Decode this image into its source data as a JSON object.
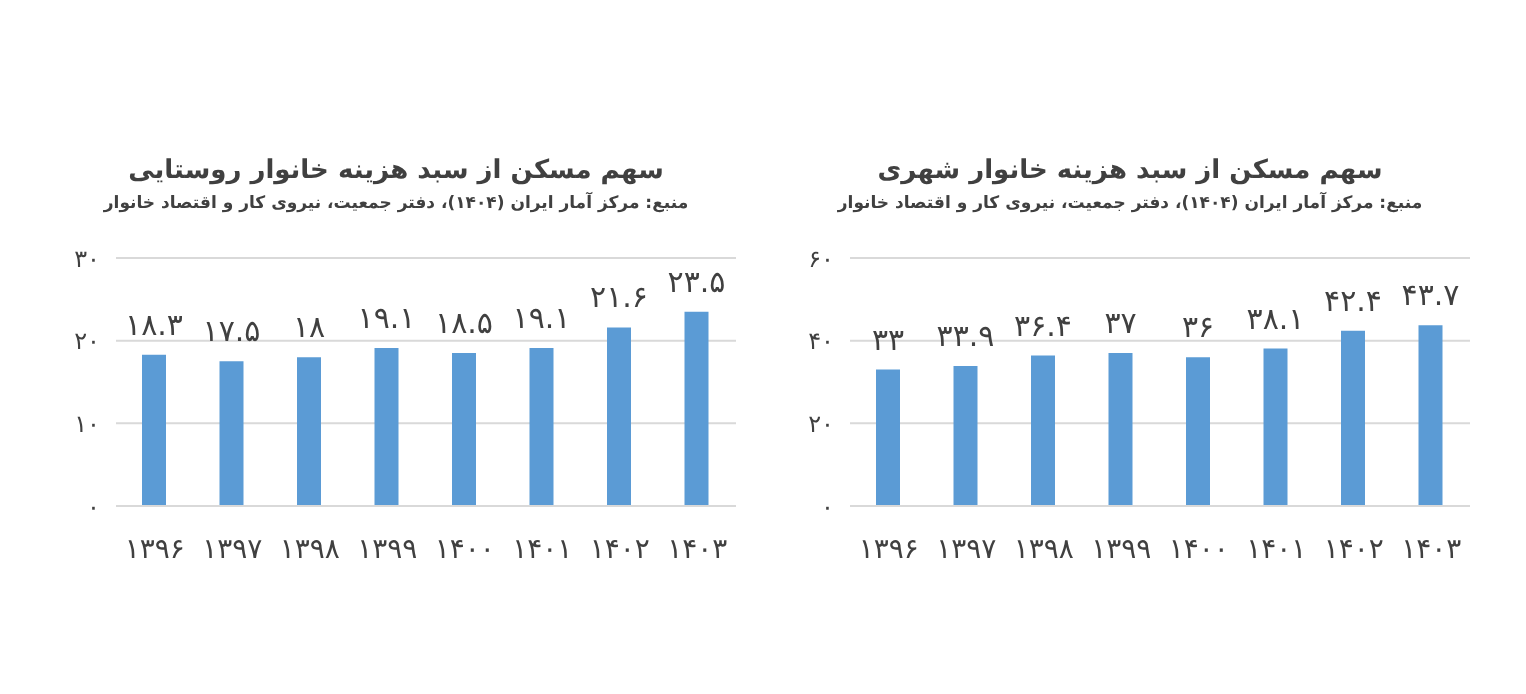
{
  "chart_data": [
    {
      "type": "bar",
      "title": "سهم مسکن از سبد هزینه خانوار روستایی",
      "subtitle": "منبع: مرکز آمار ایران (۱۴۰۴)، دفتر جمعیت، نیروی کار و اقتصاد خانوار",
      "categories": [
        "۱۳۹۶",
        "۱۳۹۷",
        "۱۳۹۸",
        "۱۳۹۹",
        "۱۴۰۰",
        "۱۴۰۱",
        "۱۴۰۲",
        "۱۴۰۳"
      ],
      "values": [
        18.3,
        17.5,
        18,
        19.1,
        18.5,
        19.1,
        21.6,
        23.5
      ],
      "value_labels": [
        "۱۸.۳",
        "۱۷.۵",
        "۱۸",
        "۱۹.۱",
        "۱۸.۵",
        "۱۹.۱",
        "۲۱.۶",
        "۲۳.۵"
      ],
      "color": "#5b9bd5",
      "ylim": [
        0,
        30
      ],
      "yticks": [
        {
          "value": 0,
          "label": "۰"
        },
        {
          "value": 10,
          "label": "۱۰"
        },
        {
          "value": 20,
          "label": "۲۰"
        },
        {
          "value": 30,
          "label": "۳۰"
        }
      ],
      "grid": "y"
    },
    {
      "type": "bar",
      "title": "سهم مسکن از سبد هزینه خانوار شهری",
      "subtitle": "منبع: مرکز آمار ایران (۱۴۰۴)، دفتر جمعیت، نیروی کار و اقتصاد خانوار",
      "categories": [
        "۱۳۹۶",
        "۱۳۹۷",
        "۱۳۹۸",
        "۱۳۹۹",
        "۱۴۰۰",
        "۱۴۰۱",
        "۱۴۰۲",
        "۱۴۰۳"
      ],
      "values": [
        33,
        33.9,
        36.4,
        37,
        36,
        38.1,
        42.4,
        43.7
      ],
      "value_labels": [
        "۳۳",
        "۳۳.۹",
        "۳۶.۴",
        "۳۷",
        "۳۶",
        "۳۸.۱",
        "۴۲.۴",
        "۴۳.۷"
      ],
      "color": "#5b9bd5",
      "ylim": [
        0,
        60
      ],
      "yticks": [
        {
          "value": 0,
          "label": "۰"
        },
        {
          "value": 20,
          "label": "۲۰"
        },
        {
          "value": 40,
          "label": "۴۰"
        },
        {
          "value": 60,
          "label": "۶۰"
        }
      ],
      "grid": "y"
    }
  ]
}
